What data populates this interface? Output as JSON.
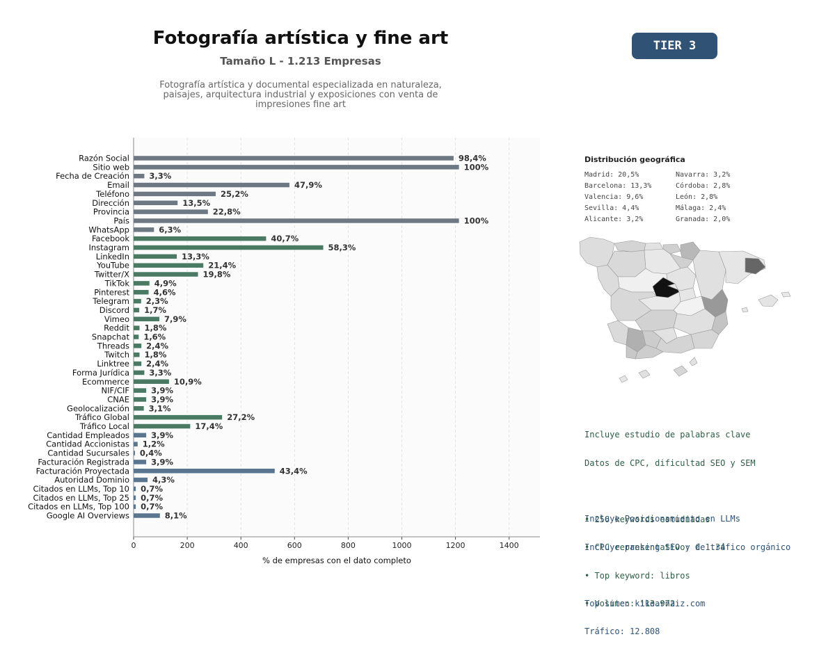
{
  "header": {
    "title": "Fotografía artística y fine art",
    "subtitle": "Tamaño L - 1.213 Empresas",
    "description_lines": [
      "Fotografía artística y documental especializada en naturaleza,",
      "paisajes, arquitectura industrial y exposiciones con venta de",
      "impresiones fine art"
    ],
    "tier_badge": "TIER 3"
  },
  "colors": {
    "gray_bar": "#6e7883",
    "green_bar": "#4a7a64",
    "blue_bar": "#5a7590",
    "tier_bg": "#2f5275",
    "map_highlight": "#111111"
  },
  "chart_data": {
    "type": "bar",
    "orientation": "horizontal",
    "xlabel": "% de empresas con el dato completo",
    "xlim": [
      0,
      1515
    ],
    "xticks": [
      0,
      200,
      400,
      600,
      800,
      1000,
      1200,
      1400
    ],
    "grid": "vertical dashed",
    "categories": [
      "Razón Social",
      "Sitio web",
      "Fecha de Creación",
      "Email",
      "Teléfono",
      "Dirección",
      "Provincia",
      "País",
      "WhatsApp",
      "Facebook",
      "Instagram",
      "LinkedIn",
      "YouTube",
      "Twitter/X",
      "TikTok",
      "Pinterest",
      "Telegram",
      "Discord",
      "Vimeo",
      "Reddit",
      "Snapchat",
      "Threads",
      "Twitch",
      "Linktree",
      "Forma Jurídica",
      "Ecommerce",
      "NIF/CIF",
      "CNAE",
      "Geolocalización",
      "Tráfico Global",
      "Tráfico Local",
      "Cantidad Empleados",
      "Cantidad Accionistas",
      "Cantidad Sucursales",
      "Facturación Registrada",
      "Facturación Proyectada",
      "Autoridad Dominio",
      "Citados en LLMs, Top 10",
      "Citados en LLMs, Top 25",
      "Citados en LLMs, Top 100",
      "Google AI Overviews"
    ],
    "values": [
      1193,
      1213,
      40,
      581,
      306,
      164,
      277,
      1213,
      76,
      494,
      707,
      161,
      260,
      240,
      59,
      56,
      28,
      21,
      96,
      22,
      19,
      29,
      22,
      29,
      40,
      132,
      47,
      47,
      38,
      330,
      211,
      47,
      15,
      5,
      47,
      526,
      52,
      8,
      8,
      8,
      98
    ],
    "labels": [
      "98,4%",
      "100%",
      "3,3%",
      "47,9%",
      "25,2%",
      "13,5%",
      "22,8%",
      "100%",
      "6,3%",
      "40,7%",
      "58,3%",
      "13,3%",
      "21,4%",
      "19,8%",
      "4,9%",
      "4,6%",
      "2,3%",
      "1,7%",
      "7,9%",
      "1,8%",
      "1,6%",
      "2,4%",
      "1,8%",
      "2,4%",
      "3,3%",
      "10,9%",
      "3,9%",
      "3,9%",
      "3,1%",
      "27,2%",
      "17,4%",
      "3,9%",
      "1,2%",
      "0,4%",
      "3,9%",
      "43,4%",
      "4,3%",
      "0,7%",
      "0,7%",
      "0,7%",
      "8,1%"
    ],
    "groups": [
      "gray",
      "gray",
      "gray",
      "gray",
      "gray",
      "gray",
      "gray",
      "gray",
      "gray",
      "green",
      "green",
      "green",
      "green",
      "green",
      "green",
      "green",
      "green",
      "green",
      "green",
      "green",
      "green",
      "green",
      "green",
      "green",
      "green",
      "green",
      "green",
      "green",
      "green",
      "green",
      "green",
      "blue",
      "blue",
      "blue",
      "blue",
      "blue",
      "blue",
      "blue",
      "blue",
      "blue",
      "blue"
    ]
  },
  "geo": {
    "title": "Distribución geográfica",
    "items": [
      "Madrid: 20,5%",
      "Navarra: 3,2%",
      "Barcelona: 13,3%",
      "Córdoba: 2,8%",
      "Valencia: 9,6%",
      "León: 2,8%",
      "Sevilla: 4,4%",
      "Málaga: 2,4%",
      "Alicante: 3,2%",
      "Granada: 2,0%"
    ]
  },
  "keywords": {
    "lines": [
      "Incluye estudio de palabras clave",
      "Datos de CPC, dificultad SEO y SEM",
      "",
      "• 256 keywords estudiadas",
      "• CPC representativo: € 1.34",
      "• Top keyword: libros",
      "• Volumen: 113.972"
    ]
  },
  "llm": {
    "lines": [
      "Incluye Posicionamiento en LLMs",
      "Incluye ranking SEO y de tráfico orgánico",
      "",
      "Top site: kikearnaiz.com",
      "Tráfico: 12.808"
    ]
  }
}
